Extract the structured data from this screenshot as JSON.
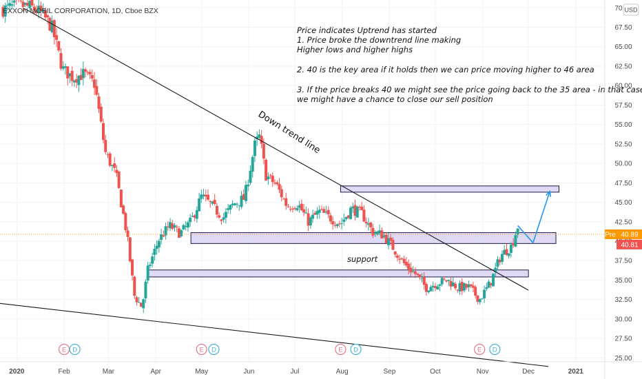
{
  "symbol": {
    "title": "EXXON MOBIL CORPORATION, 1D, Cboe BZX"
  },
  "currency": "USD",
  "notes": [
    "Price indicates Uptrend has started",
    "1. Price broke the downtrend line making",
    "Higher lows and higher highs",
    "2. 40 is the key area if it holds then we can price moving higher to 46 area",
    "3. If the price breaks 40 we might see the price going back to the 35 area - in that case,",
    "we might have a chance to close our sell position"
  ],
  "annotations": {
    "downtrend": "Down trend line",
    "support": "support"
  },
  "price_tags": {
    "pre_label": "Pre",
    "pre_value": "40.89",
    "last_value": "40.81"
  },
  "events": [
    {
      "date": "2020-02-01",
      "type": "E"
    },
    {
      "date": "2020-02-08",
      "type": "D"
    },
    {
      "date": "2020-05-01",
      "type": "E"
    },
    {
      "date": "2020-05-09",
      "type": "D"
    },
    {
      "date": "2020-07-31",
      "type": "E"
    },
    {
      "date": "2020-08-10",
      "type": "D"
    },
    {
      "date": "2020-10-30",
      "type": "E"
    },
    {
      "date": "2020-11-09",
      "type": "D"
    }
  ],
  "colors": {
    "up": "#26a69a",
    "down": "#ef5350",
    "zone_fill": "#d9d2f2",
    "zone_border": "#1f1a4a",
    "projection": "#2196f3",
    "pre_tag": "#ff9800",
    "last_tag": "#ef5350",
    "event_e": "#e07a8a",
    "event_d": "#4ab3d6"
  },
  "chart_data": {
    "type": "candlestick",
    "title": "EXXON MOBIL CORPORATION, 1D, Cboe BZX",
    "y_ticks": [
      "25.00",
      "27.50",
      "30.00",
      "32.50",
      "35.00",
      "37.50",
      "40.00",
      "42.50",
      "45.00",
      "47.50",
      "50.00",
      "52.50",
      "55.00",
      "57.50",
      "60.00",
      "62.50",
      "65.00",
      "67.50",
      "70.00"
    ],
    "ylim": [
      24.5,
      71.0
    ],
    "x_ticks": [
      {
        "label": "2020",
        "date": "2020-01-01"
      },
      {
        "label": "Feb",
        "date": "2020-02-01"
      },
      {
        "label": "Mar",
        "date": "2020-03-01"
      },
      {
        "label": "Apr",
        "date": "2020-04-01"
      },
      {
        "label": "May",
        "date": "2020-05-01"
      },
      {
        "label": "Jun",
        "date": "2020-06-01"
      },
      {
        "label": "Jul",
        "date": "2020-07-01"
      },
      {
        "label": "Aug",
        "date": "2020-08-01"
      },
      {
        "label": "Sep",
        "date": "2020-09-01"
      },
      {
        "label": "Oct",
        "date": "2020-10-01"
      },
      {
        "label": "Nov",
        "date": "2020-11-01"
      },
      {
        "label": "Dec",
        "date": "2020-12-01"
      },
      {
        "label": "2021",
        "date": "2021-01-01"
      }
    ],
    "xlim": [
      "2019-12-21",
      "2021-01-20"
    ],
    "close_path": [
      [
        "2019-12-23",
        69.8
      ],
      [
        "2020-01-03",
        70.3
      ],
      [
        "2020-01-10",
        70.1
      ],
      [
        "2020-01-17",
        69.3
      ],
      [
        "2020-01-24",
        67.5
      ],
      [
        "2020-01-31",
        62.1
      ],
      [
        "2020-02-07",
        61.0
      ],
      [
        "2020-02-14",
        61.5
      ],
      [
        "2020-02-21",
        60.2
      ],
      [
        "2020-02-28",
        51.4
      ],
      [
        "2020-03-06",
        48.5
      ],
      [
        "2020-03-13",
        41.0
      ],
      [
        "2020-03-18",
        33.0
      ],
      [
        "2020-03-23",
        31.5
      ],
      [
        "2020-03-27",
        36.5
      ],
      [
        "2020-04-03",
        40.2
      ],
      [
        "2020-04-10",
        42.0
      ],
      [
        "2020-04-17",
        41.0
      ],
      [
        "2020-04-24",
        42.5
      ],
      [
        "2020-05-01",
        45.8
      ],
      [
        "2020-05-08",
        44.5
      ],
      [
        "2020-05-15",
        43.0
      ],
      [
        "2020-05-22",
        44.8
      ],
      [
        "2020-05-29",
        45.5
      ],
      [
        "2020-06-05",
        52.5
      ],
      [
        "2020-06-08",
        53.5
      ],
      [
        "2020-06-12",
        48.5
      ],
      [
        "2020-06-19",
        47.2
      ],
      [
        "2020-06-26",
        44.5
      ],
      [
        "2020-07-03",
        44.8
      ],
      [
        "2020-07-10",
        42.5
      ],
      [
        "2020-07-17",
        43.8
      ],
      [
        "2020-07-24",
        43.0
      ],
      [
        "2020-07-31",
        42.2
      ],
      [
        "2020-08-07",
        44.2
      ],
      [
        "2020-08-14",
        43.5
      ],
      [
        "2020-08-21",
        41.2
      ],
      [
        "2020-08-28",
        40.8
      ],
      [
        "2020-09-04",
        39.0
      ],
      [
        "2020-09-11",
        37.0
      ],
      [
        "2020-09-18",
        35.8
      ],
      [
        "2020-09-25",
        34.0
      ],
      [
        "2020-10-02",
        34.6
      ],
      [
        "2020-10-09",
        35.0
      ],
      [
        "2020-10-16",
        34.0
      ],
      [
        "2020-10-23",
        34.1
      ],
      [
        "2020-10-30",
        32.5
      ],
      [
        "2020-11-06",
        34.6
      ],
      [
        "2020-11-13",
        38.2
      ],
      [
        "2020-11-20",
        39.4
      ],
      [
        "2020-11-24",
        41.9
      ]
    ],
    "candle_count": 232,
    "trendlines": [
      {
        "name": "Down trend line",
        "from": [
          "2020-01-06",
          69.9
        ],
        "to": [
          "2020-12-01",
          33.7
        ]
      },
      {
        "name": "lower trend line",
        "from": [
          "2019-12-21",
          32.0
        ],
        "to": [
          "2020-12-14",
          23.9
        ]
      }
    ],
    "zones": [
      {
        "name": "resistance",
        "from": "2020-07-31",
        "to": "2020-12-21",
        "low": 46.3,
        "high": 47.1
      },
      {
        "name": "key-area",
        "from": "2020-04-24",
        "to": "2020-12-19",
        "low": 39.7,
        "high": 41.1
      },
      {
        "name": "support",
        "from": "2020-03-27",
        "to": "2020-12-01",
        "low": 35.4,
        "high": 36.3
      }
    ],
    "projection": [
      [
        "2020-11-24",
        42.0
      ],
      [
        "2020-12-04",
        39.8
      ],
      [
        "2020-12-15",
        46.4
      ]
    ],
    "current_price": 40.89,
    "last_price": 40.81
  }
}
